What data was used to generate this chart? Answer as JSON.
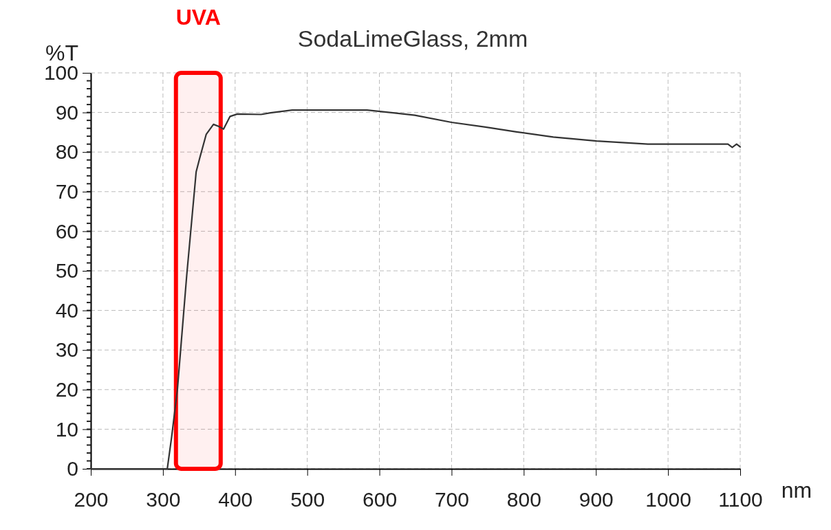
{
  "chart_data": {
    "type": "line",
    "title": "SodaLimeGlass, 2mm",
    "xlabel": "nm",
    "ylabel": "%T",
    "x": [
      200,
      306,
      312,
      320,
      333,
      346,
      351,
      360,
      370,
      377,
      384,
      393,
      403,
      436,
      449,
      479,
      583,
      619,
      649,
      700,
      747,
      790,
      841,
      901,
      972,
      1083,
      1089,
      1095,
      1100
    ],
    "series": [
      {
        "color": "#333333",
        "values": [
          0,
          0,
          8,
          20,
          49,
          75,
          78.5,
          84.5,
          87,
          86.5,
          85.8,
          89,
          89.6,
          89.5,
          89.9,
          90.6,
          90.6,
          89.9,
          89.3,
          87.5,
          86.3,
          85.1,
          83.8,
          82.8,
          82,
          82,
          81.2,
          82,
          81.3
        ]
      }
    ],
    "xlim": [
      200,
      1100
    ],
    "ylim": [
      0,
      100
    ],
    "xticks": [
      200,
      300,
      400,
      500,
      600,
      700,
      800,
      900,
      1000,
      1100
    ],
    "yticks": [
      0,
      10,
      20,
      30,
      40,
      50,
      60,
      70,
      80,
      90,
      100
    ],
    "grid": true,
    "marker": "none",
    "line_style": "solid",
    "bands": [
      {
        "axis": "x",
        "from": 318,
        "to": 380,
        "label": "UVA",
        "color": "#ff0000"
      }
    ]
  }
}
